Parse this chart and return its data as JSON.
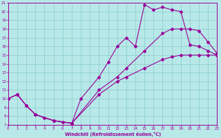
{
  "bg_color": "#b8e8e8",
  "line_color": "#990099",
  "grid_color": "#88cccc",
  "xlabel": "Windchill (Refroidissement éolien,°C)",
  "xlim": [
    0,
    23
  ],
  "ylim": [
    7,
    21
  ],
  "xtick_labels": [
    "0",
    "1",
    "2",
    "3",
    "4",
    "5",
    "6",
    "7",
    "8",
    "9",
    "10",
    "11",
    "12",
    "13",
    "14",
    "15",
    "16",
    "17",
    "18",
    "19",
    "20",
    "21",
    "22",
    "23"
  ],
  "ytick_labels": [
    "7",
    "8",
    "9",
    "10",
    "11",
    "12",
    "13",
    "14",
    "15",
    "16",
    "17",
    "18",
    "19",
    "20",
    "21"
  ],
  "line1_x": [
    0,
    1,
    2,
    3,
    4,
    5,
    6,
    7,
    8,
    10,
    11,
    12,
    13,
    14,
    15,
    16,
    17,
    18,
    19,
    20,
    21,
    22,
    23
  ],
  "line1_y": [
    10,
    10.5,
    9.2,
    8.2,
    7.8,
    7.5,
    7.3,
    7.2,
    10.0,
    12.5,
    14.2,
    16.0,
    17.0,
    16.0,
    20.8,
    20.2,
    20.5,
    20.2,
    20.0,
    16.2,
    16.0,
    15.5,
    15.0
  ],
  "line2_x": [
    0,
    1,
    2,
    3,
    5,
    7,
    10,
    12,
    13,
    15,
    17,
    18,
    19,
    20,
    21,
    22,
    23
  ],
  "line2_y": [
    10,
    10.5,
    9.2,
    8.2,
    7.5,
    7.2,
    11.0,
    12.5,
    13.5,
    15.5,
    17.5,
    18.0,
    18.0,
    18.0,
    17.8,
    16.5,
    15.2
  ],
  "line3_x": [
    0,
    1,
    2,
    3,
    5,
    7,
    10,
    12,
    13,
    15,
    17,
    18,
    19,
    20,
    21,
    22,
    23
  ],
  "line3_y": [
    10,
    10.5,
    9.2,
    8.2,
    7.5,
    7.2,
    10.5,
    12.0,
    12.5,
    13.5,
    14.5,
    14.8,
    15.0,
    15.0,
    15.0,
    15.0,
    15.0
  ]
}
